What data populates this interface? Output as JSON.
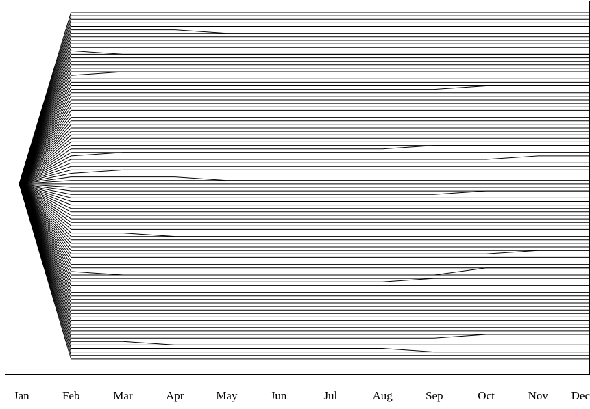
{
  "chart_data": {
    "type": "line",
    "title": "",
    "xlabel": "",
    "ylabel": "",
    "categories": [
      "Jan",
      "Feb",
      "Mar",
      "Apr",
      "May",
      "Jun",
      "Jul",
      "Aug",
      "Sep",
      "Oct",
      "Nov",
      "Dec"
    ],
    "ylim": [
      0,
      100
    ],
    "grid": false,
    "legend": "none",
    "axes_frame": true,
    "line_color": "#000000",
    "origin": {
      "month": "Jan",
      "value": 49
    },
    "series_count": 100,
    "levels": [
      0,
      1,
      2,
      3,
      4,
      5,
      6,
      7,
      8,
      9,
      10,
      11,
      12,
      13,
      14,
      15,
      16,
      17,
      18,
      19,
      20,
      21,
      22,
      23,
      24,
      25,
      26,
      27,
      28,
      29,
      30,
      31,
      32,
      33,
      34,
      35,
      36,
      37,
      38,
      39,
      40,
      41,
      42,
      43,
      44,
      45,
      46,
      47,
      48,
      49,
      50,
      51,
      52,
      53,
      54,
      55,
      56,
      57,
      58,
      59,
      60,
      61,
      62,
      63,
      64,
      65,
      66,
      67,
      68,
      69,
      70,
      71,
      72,
      73,
      74,
      75,
      76,
      77,
      78,
      79,
      80,
      81,
      82,
      83,
      84,
      85,
      86,
      87,
      88,
      89,
      90,
      91,
      92,
      93,
      94,
      95,
      96,
      97,
      98,
      99
    ],
    "feb_reversals": [
      {
        "level": 11,
        "reverts_to": 12,
        "at_month": "Mar"
      },
      {
        "level": 18,
        "reverts_to": 17,
        "at_month": "Mar"
      },
      {
        "level": 41,
        "reverts_to": 40,
        "at_month": "Mar"
      },
      {
        "level": 46,
        "reverts_to": 45,
        "at_month": "Mar"
      },
      {
        "level": 74,
        "reverts_to": 75,
        "at_month": "Mar"
      },
      {
        "level": 94,
        "reverts_to": 95,
        "at_month": "Apr"
      }
    ],
    "late_splits": [
      {
        "level": 5,
        "to": 6,
        "from_month": "Apr",
        "to_month": "May"
      },
      {
        "level": 22,
        "to": 21,
        "from_month": "Sep",
        "to_month": "Oct"
      },
      {
        "level": 39,
        "to": 38,
        "from_month": "Aug",
        "to_month": "Sep"
      },
      {
        "level": 42,
        "to": 41,
        "from_month": "Oct",
        "to_month": "Nov"
      },
      {
        "level": 47,
        "to": 48,
        "from_month": "Apr",
        "to_month": "May"
      },
      {
        "level": 52,
        "to": 51,
        "from_month": "Sep",
        "to_month": "Oct"
      },
      {
        "level": 63,
        "to": 64,
        "from_month": "Mar",
        "to_month": "Apr"
      },
      {
        "level": 69,
        "to": 68,
        "from_month": "Oct",
        "to_month": "Nov"
      },
      {
        "level": 74,
        "to": 73,
        "from_month": "Sep",
        "to_month": "Oct"
      },
      {
        "level": 77,
        "to": 76,
        "from_month": "Aug",
        "to_month": "Sep"
      },
      {
        "level": 93,
        "to": 92,
        "from_month": "Sep",
        "to_month": "Oct"
      },
      {
        "level": 96,
        "to": 97,
        "from_month": "Aug",
        "to_month": "Sep"
      }
    ]
  }
}
